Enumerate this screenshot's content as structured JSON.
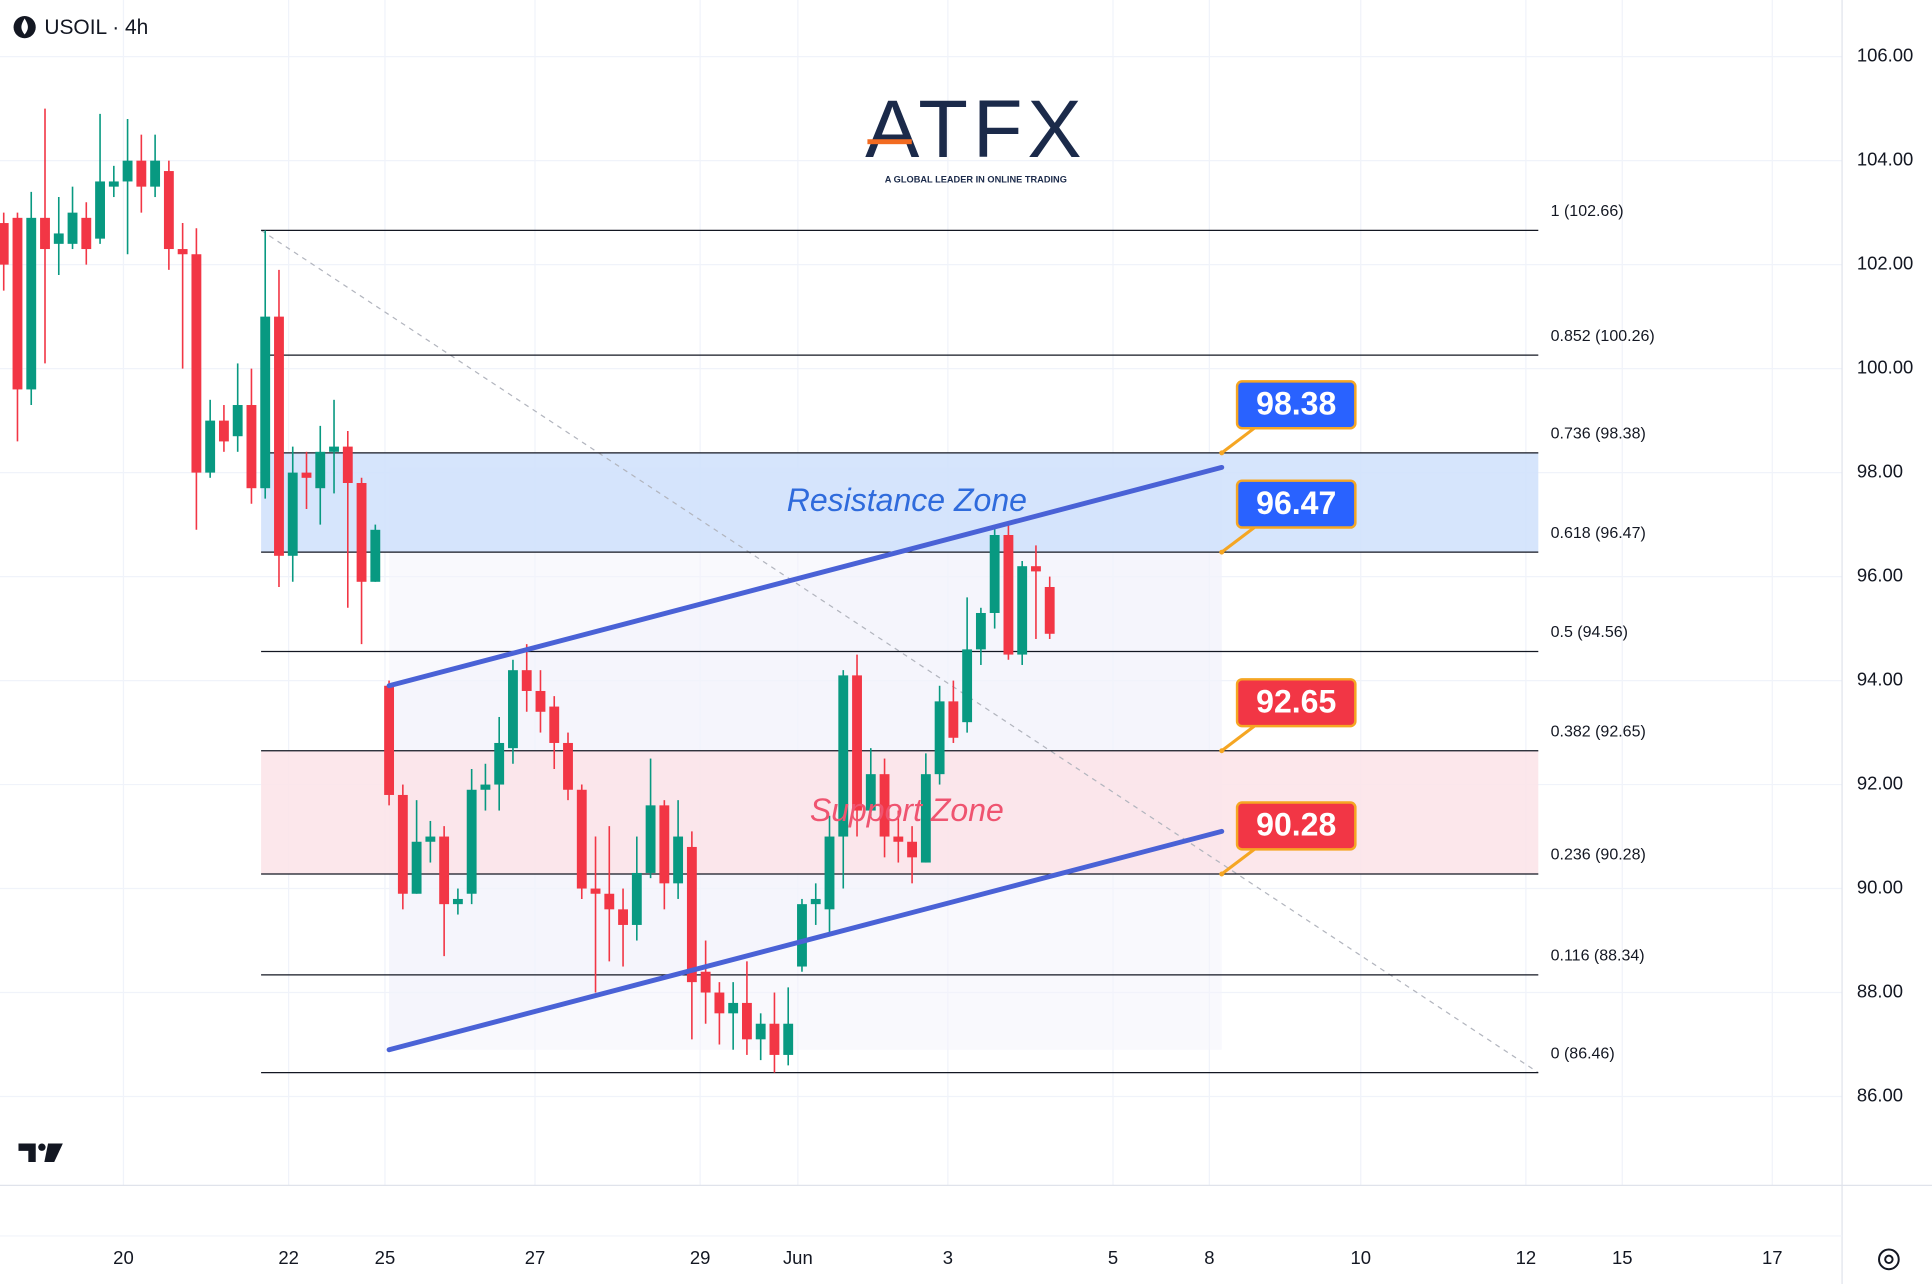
{
  "chart_data": {
    "type": "candlestick",
    "title": "USOIL · 4h",
    "open": [
      102.8,
      102.9,
      99.6,
      102.9,
      102.4,
      102.4,
      102.9,
      102.5,
      103.5,
      103.6,
      104.0,
      103.5,
      103.8,
      102.3,
      102.2,
      98.0,
      99.0,
      98.7,
      99.3,
      97.7,
      101.0,
      96.4,
      98.0,
      97.7,
      98.4,
      98.5,
      97.8,
      95.9,
      93.9,
      91.8,
      89.9,
      90.9,
      91.0,
      89.7,
      89.9,
      91.9,
      92.0,
      92.7,
      94.2,
      93.8,
      93.5,
      92.8,
      91.9,
      90.0,
      89.9,
      89.6,
      89.3,
      90.3,
      91.6,
      90.1,
      90.8,
      88.4,
      88.0,
      87.6,
      87.8,
      87.1,
      87.4,
      86.8,
      88.5,
      89.7,
      89.6,
      91.0,
      94.1,
      91.5,
      92.2,
      91.0,
      90.9,
      90.5,
      92.2,
      93.6,
      93.2,
      94.6,
      95.3,
      96.8,
      94.5,
      96.2,
      95.8
    ],
    "high": [
      103.0,
      103.0,
      103.4,
      105.0,
      103.3,
      103.5,
      103.2,
      104.9,
      103.9,
      104.8,
      104.5,
      104.5,
      104.0,
      102.8,
      102.7,
      99.4,
      99.3,
      100.1,
      100.0,
      102.66,
      101.9,
      98.5,
      98.4,
      98.9,
      99.4,
      98.8,
      97.9,
      97.0,
      94.0,
      92.0,
      91.7,
      91.3,
      91.2,
      90.0,
      92.3,
      92.4,
      93.3,
      94.4,
      94.7,
      94.2,
      93.7,
      93.0,
      92.0,
      91.0,
      91.2,
      90.0,
      91.0,
      92.5,
      91.7,
      91.7,
      91.1,
      89.0,
      88.2,
      88.2,
      88.6,
      87.6,
      88.0,
      88.1,
      89.8,
      90.1,
      91.4,
      94.2,
      94.5,
      92.7,
      92.5,
      91.5,
      91.2,
      92.6,
      93.9,
      94.0,
      95.6,
      95.4,
      97.0,
      97.0,
      96.3,
      96.6,
      96.0
    ],
    "low": [
      101.5,
      98.6,
      99.3,
      100.1,
      101.8,
      102.3,
      102.0,
      102.4,
      103.3,
      102.2,
      103.0,
      103.3,
      101.9,
      100.0,
      96.9,
      97.9,
      98.4,
      98.4,
      97.4,
      97.5,
      95.8,
      95.9,
      97.3,
      97.0,
      97.6,
      95.4,
      94.7,
      95.9,
      91.6,
      89.6,
      89.9,
      90.5,
      88.7,
      89.5,
      89.7,
      91.5,
      91.5,
      92.4,
      93.4,
      93.0,
      92.3,
      91.7,
      89.8,
      88.0,
      88.6,
      88.5,
      89.0,
      90.2,
      89.6,
      89.8,
      87.1,
      87.4,
      87.0,
      86.9,
      86.8,
      86.7,
      86.46,
      86.6,
      88.4,
      89.3,
      89.1,
      90.0,
      91.0,
      91.4,
      90.6,
      90.5,
      90.1,
      90.5,
      92.0,
      92.8,
      93.0,
      94.3,
      95.0,
      94.4,
      94.3,
      94.8,
      94.8
    ],
    "close": [
      102.0,
      99.6,
      102.9,
      102.3,
      102.6,
      103.0,
      102.3,
      103.6,
      103.6,
      104.0,
      103.5,
      104.0,
      102.3,
      102.2,
      98.0,
      99.0,
      98.6,
      99.3,
      97.7,
      101.0,
      96.4,
      98.0,
      97.9,
      98.4,
      98.5,
      97.8,
      95.9,
      96.9,
      91.8,
      89.9,
      90.9,
      91.0,
      89.7,
      89.8,
      91.9,
      92.0,
      92.8,
      94.2,
      93.8,
      93.4,
      92.8,
      91.9,
      90.0,
      89.9,
      89.6,
      89.3,
      90.3,
      91.6,
      90.1,
      91.0,
      88.2,
      88.0,
      87.6,
      87.8,
      87.1,
      87.4,
      86.8,
      87.4,
      89.7,
      89.8,
      91.0,
      94.1,
      91.5,
      92.2,
      91.0,
      90.9,
      90.6,
      92.2,
      93.6,
      92.9,
      94.6,
      95.3,
      96.8,
      94.5,
      96.2,
      96.1,
      94.9
    ],
    "up_color": "#089981",
    "down_color": "#f23645",
    "xlim": [
      -0.27,
      133.57
    ],
    "xticks": [
      {
        "value": 8.7,
        "label": "20"
      },
      {
        "value": 20.7,
        "label": "22"
      },
      {
        "value": 27.7,
        "label": "25"
      },
      {
        "value": 38.6,
        "label": "27"
      },
      {
        "value": 50.6,
        "label": "29"
      },
      {
        "value": 57.7,
        "label": "Jun"
      },
      {
        "value": 68.6,
        "label": "3"
      },
      {
        "value": 80.6,
        "label": "5"
      },
      {
        "value": 87.6,
        "label": "8"
      },
      {
        "value": 98.6,
        "label": "10"
      },
      {
        "value": 110.6,
        "label": "12"
      },
      {
        "value": 117.6,
        "label": "15"
      },
      {
        "value": 128.5,
        "label": "17"
      }
    ],
    "ylim": [
      84.29,
      107.09
    ],
    "yticks": [
      {
        "value": 86,
        "label": "86.00"
      },
      {
        "value": 88,
        "label": "88.00"
      },
      {
        "value": 90,
        "label": "90.00"
      },
      {
        "value": 92,
        "label": "92.00"
      },
      {
        "value": 94,
        "label": "94.00"
      },
      {
        "value": 96,
        "label": "96.00"
      },
      {
        "value": 98,
        "label": "98.00"
      },
      {
        "value": 100,
        "label": "100.00"
      },
      {
        "value": 102,
        "label": "102.00"
      },
      {
        "value": 104,
        "label": "104.00"
      },
      {
        "value": 106,
        "label": "106.00"
      }
    ],
    "grid": true,
    "fib_x": [
      18.7,
      111.5
    ],
    "fib_levels": [
      {
        "value": 102.66,
        "label": "1 (102.66)"
      },
      {
        "value": 100.26,
        "label": "0.852 (100.26)"
      },
      {
        "value": 98.38,
        "label": "0.736 (98.38)"
      },
      {
        "value": 96.47,
        "label": "0.618 (96.47)"
      },
      {
        "value": 94.56,
        "label": "0.5 (94.56)"
      },
      {
        "value": 92.65,
        "label": "0.382 (92.65)"
      },
      {
        "value": 90.28,
        "label": "0.236 (90.28)"
      },
      {
        "value": 88.34,
        "label": "0.116 (88.34)"
      },
      {
        "value": 86.46,
        "label": "0 (86.46)"
      }
    ],
    "zones": [
      {
        "label": "Resistance Zone",
        "from": 96.47,
        "to": 98.38,
        "color": "#2f6bdc",
        "fill": "#cfe0fb"
      },
      {
        "label": "Support Zone",
        "from": 90.28,
        "to": 92.65,
        "color": "#ef5470",
        "fill": "#fbe3e7"
      }
    ],
    "channel": {
      "x": [
        28,
        88.5
      ],
      "upper": [
        93.9,
        98.1
      ],
      "lower": [
        86.9,
        91.1
      ],
      "color": "#4a62d6"
    },
    "callouts": [
      {
        "value": 98.38,
        "color": "#2962ff"
      },
      {
        "value": 96.47,
        "color": "#2962ff"
      },
      {
        "value": 92.65,
        "color": "#f23645"
      },
      {
        "value": 90.28,
        "color": "#f23645"
      }
    ]
  },
  "logo": {
    "name": "ATFX",
    "tagline": "A GLOBAL LEADER IN ONLINE TRADING"
  }
}
